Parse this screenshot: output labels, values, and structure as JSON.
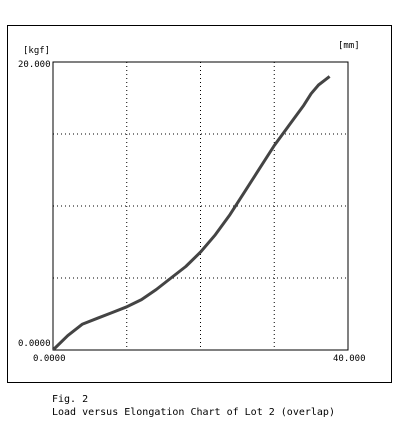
{
  "chart_data": {
    "type": "line",
    "y_unit": "[kgf]",
    "x_unit": "[mm]",
    "xlim": [
      0.0,
      40.0
    ],
    "ylim": [
      0.0,
      20.0
    ],
    "x_min_label": "0.0000",
    "x_max_label": "40.000",
    "y_min_label": "0.0000",
    "y_max_label": "20.000",
    "grid": "dotted",
    "x_gridlines": [
      10,
      20,
      30
    ],
    "y_gridlines": [
      5,
      10,
      15
    ],
    "series": [
      {
        "x": [
          0,
          2,
          4,
          6,
          8,
          10,
          12,
          14,
          16,
          18,
          20,
          22,
          24,
          26,
          28,
          30,
          32,
          34,
          35,
          36,
          37,
          37.5
        ],
        "y": [
          0,
          1.0,
          1.8,
          2.2,
          2.6,
          3.0,
          3.5,
          4.2,
          5.0,
          5.8,
          6.8,
          8.0,
          9.4,
          11.0,
          12.6,
          14.2,
          15.6,
          17.0,
          17.8,
          18.4,
          18.8,
          19.0
        ]
      }
    ]
  },
  "caption": {
    "fig": "Fig. 2",
    "text": "Load versus Elongation Chart of Lot 2 (overlap)"
  }
}
